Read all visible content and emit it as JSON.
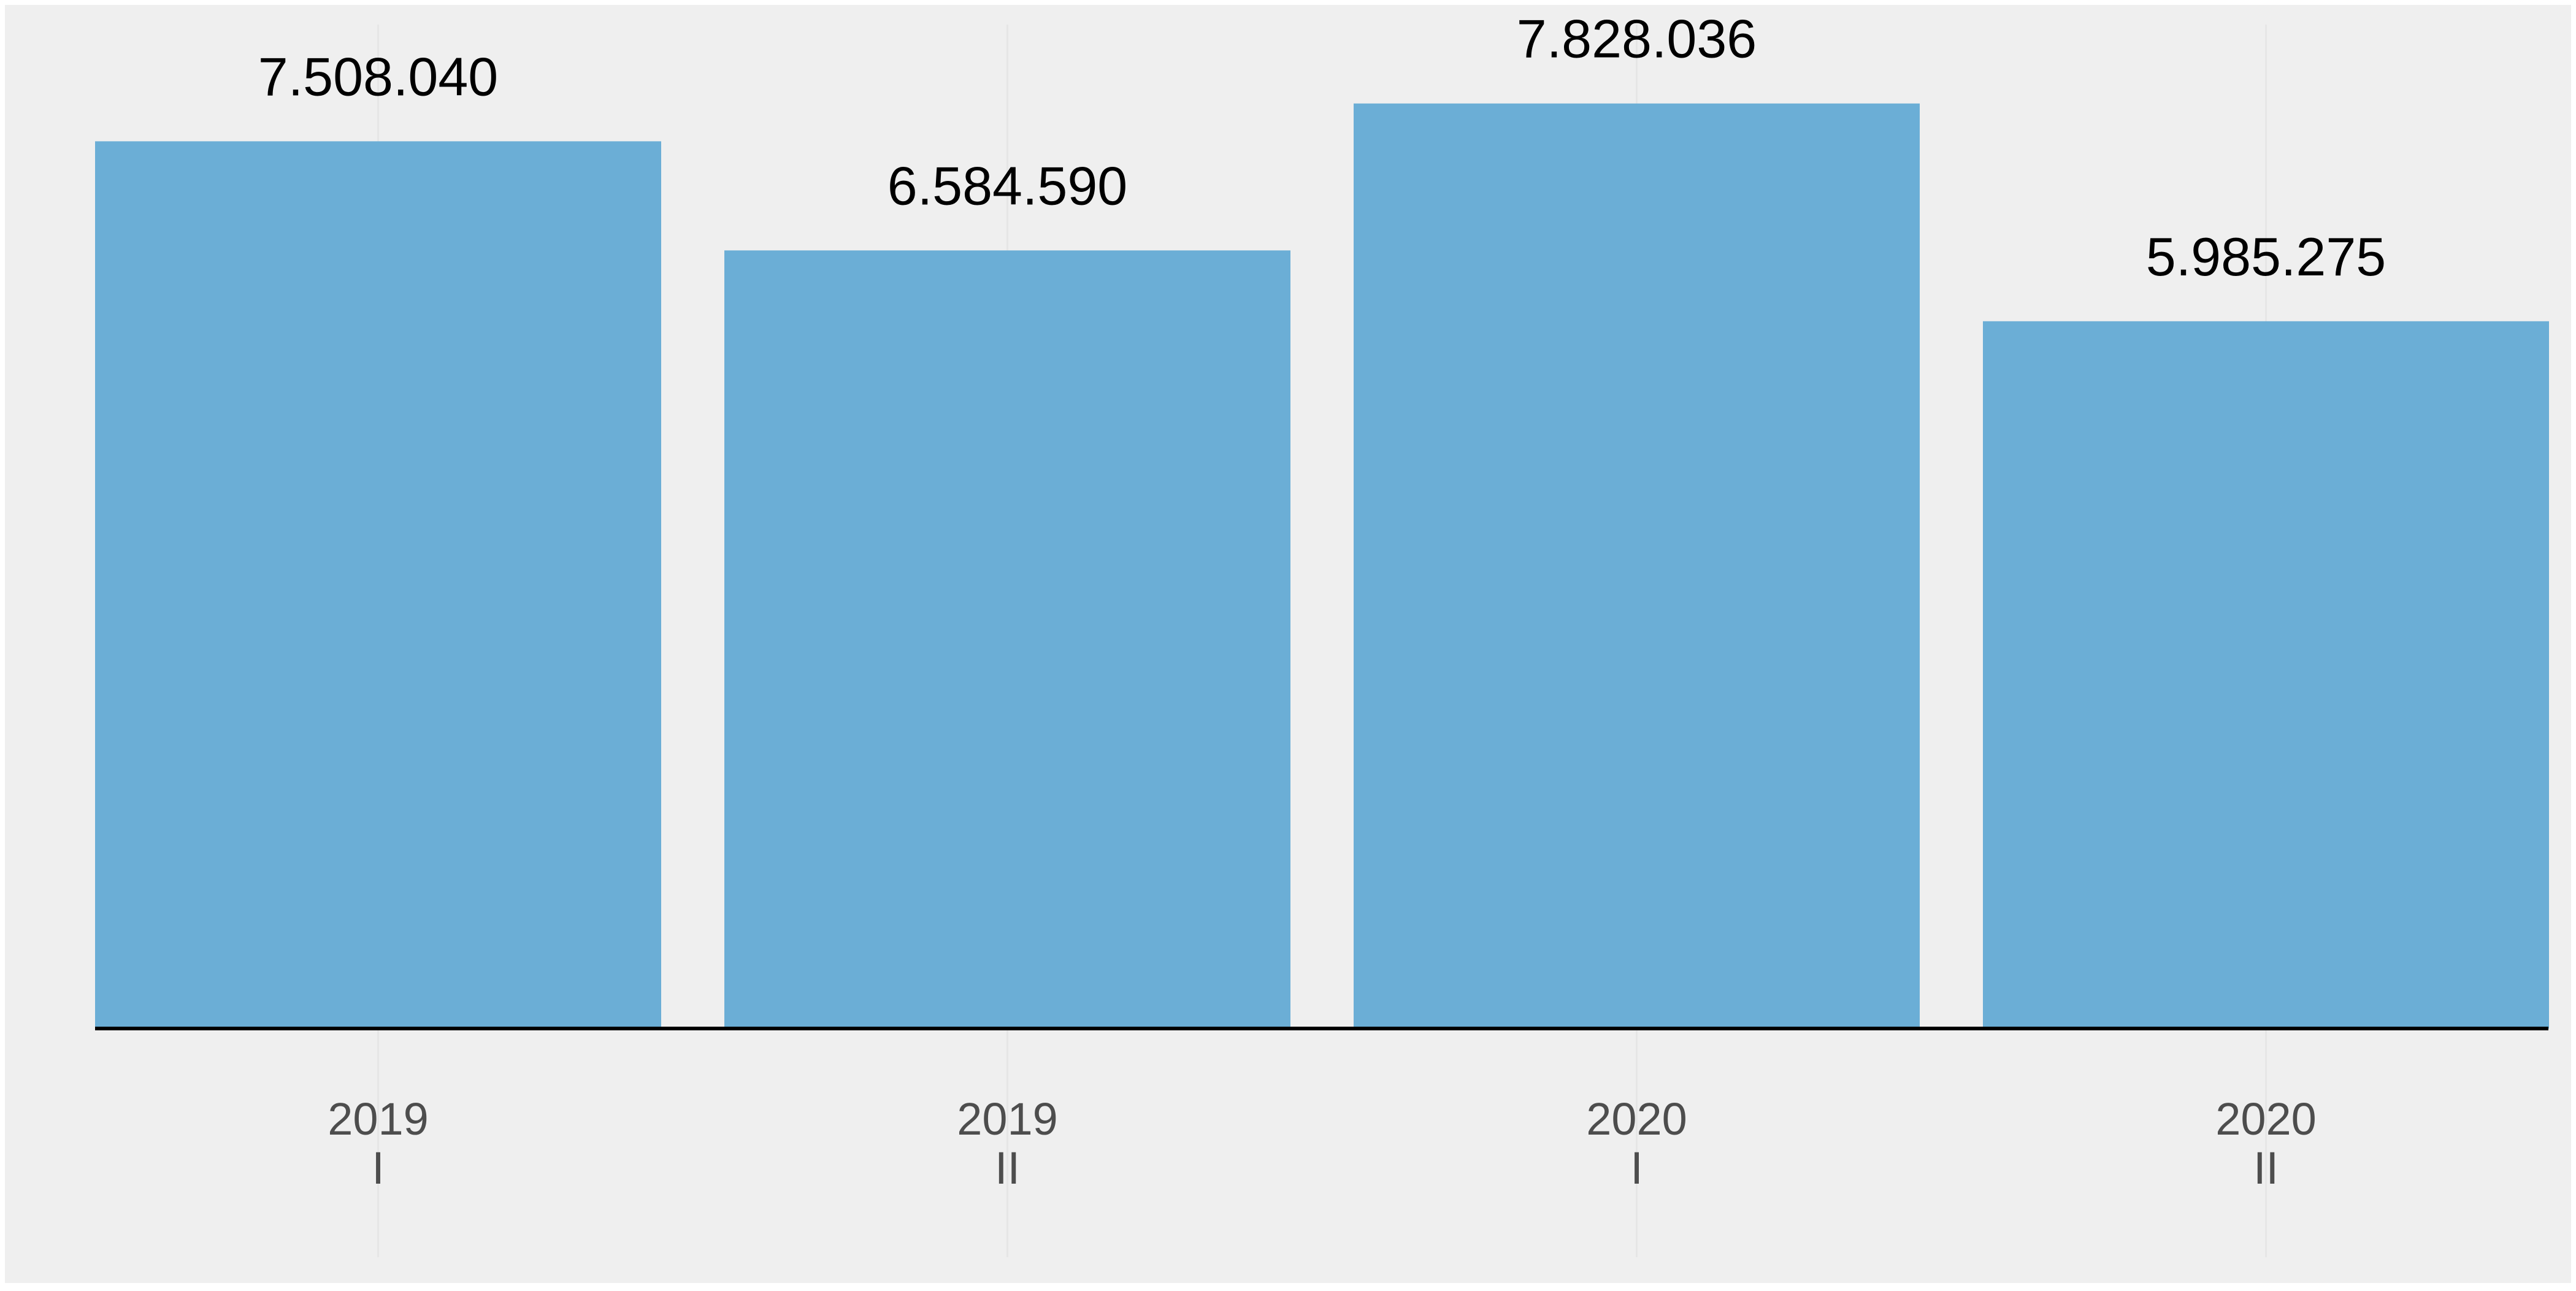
{
  "chart_data": {
    "type": "bar",
    "categories": [
      [
        "2019",
        "I"
      ],
      [
        "2019",
        "II"
      ],
      [
        "2020",
        "I"
      ],
      [
        "2020",
        "II"
      ]
    ],
    "values": [
      7508040,
      6584590,
      7828036,
      5985275
    ],
    "value_labels": [
      "7.508.040",
      "6.584.590",
      "7.828.036",
      "5.985.275"
    ],
    "title": "",
    "xlabel": "",
    "ylabel": "",
    "ylim": [
      0,
      8600000
    ],
    "grid": true,
    "legend": "none",
    "colors": {
      "bar": "#6baed6",
      "panel_background": "#efefef",
      "gridline": "#e6e6e6",
      "baseline": "#000000",
      "value_text": "#000000",
      "tick_text": "#4d4d4d"
    }
  }
}
